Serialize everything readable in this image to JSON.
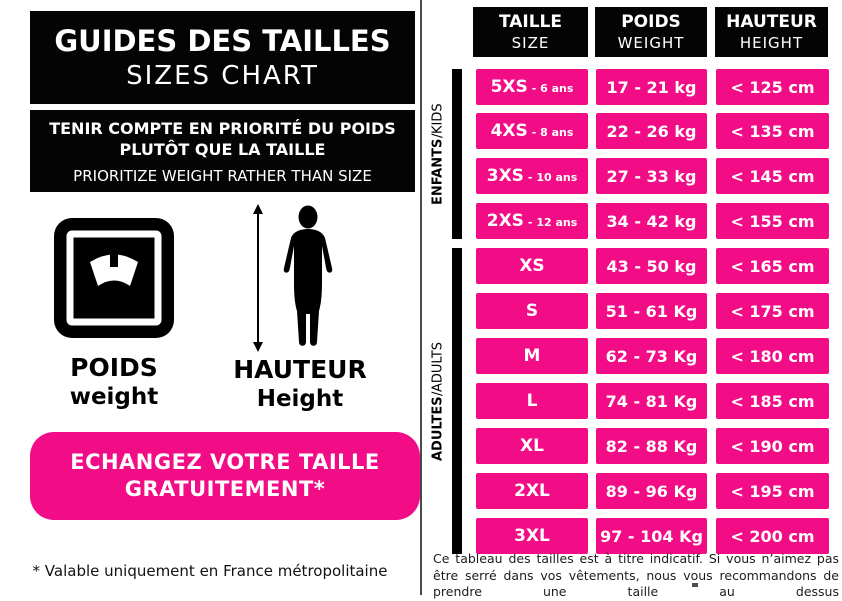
{
  "colors": {
    "pink": "#F20C86",
    "black": "#000000"
  },
  "left_panel": {
    "title_box": {
      "line1": "GUIDES DES TAILLES",
      "line2": "SIZES CHART"
    },
    "priority_box": {
      "fr_line1": "TENIR COMPTE EN PRIORITÉ DU POIDS",
      "fr_line2": "PLUTÔT QUE LA TAILLE",
      "en_line": "PRIORITIZE WEIGHT RATHER THAN SIZE"
    },
    "weight_label": {
      "fr": "POIDS",
      "en": "weight"
    },
    "height_label": {
      "fr": "HAUTEUR",
      "en": "Height"
    },
    "exchange_banner": {
      "line1": "ECHANGEZ VOTRE TAILLE",
      "line2": "GRATUITEMENT*"
    },
    "footnote": "* Valable uniquement en France métropolitaine"
  },
  "table": {
    "headers": [
      {
        "fr": "TAILLE",
        "en": "SIZE"
      },
      {
        "fr": "POIDS",
        "en": "WEIGHT"
      },
      {
        "fr": "HAUTEUR",
        "en": "HEIGHT"
      }
    ],
    "group_label_separator": " / ",
    "groups": [
      {
        "label_fr": "ENFANTS",
        "label_en": "KIDS",
        "rows": [
          {
            "size": "5XS",
            "age": "- 6 ans",
            "weight": "17 - 21 kg",
            "height": "< 125 cm"
          },
          {
            "size": "4XS",
            "age": "- 8 ans",
            "weight": "22 - 26 kg",
            "height": "< 135 cm"
          },
          {
            "size": "3XS",
            "age": "- 10 ans",
            "weight": "27 - 33 kg",
            "height": "< 145 cm"
          },
          {
            "size": "2XS",
            "age": "- 12 ans",
            "weight": "34 - 42 kg",
            "height": "< 155 cm"
          }
        ]
      },
      {
        "label_fr": "ADULTES",
        "label_en": "ADULTS",
        "rows": [
          {
            "size": "XS",
            "weight": "43 - 50 kg",
            "height": "< 165 cm"
          },
          {
            "size": "S",
            "weight": "51 - 61 Kg",
            "height": "< 175 cm"
          },
          {
            "size": "M",
            "weight": "62 - 73 Kg",
            "height": "< 180 cm"
          },
          {
            "size": "L",
            "weight": "74 - 81 Kg",
            "height": "< 185 cm"
          },
          {
            "size": "XL",
            "weight": "82 - 88 Kg",
            "height": "< 190 cm"
          },
          {
            "size": "2XL",
            "weight": "89 - 96 Kg",
            "height": "< 195 cm"
          },
          {
            "size": "3XL",
            "weight": "97 - 104 Kg",
            "height": "< 200 cm"
          }
        ]
      }
    ]
  },
  "disclaimer": "Ce tableau des tailles est à titre indicatif. Si vous n’aimez pas être serré dans vos vêtements, nous vous recommandons de prendre une taille au dessus"
}
